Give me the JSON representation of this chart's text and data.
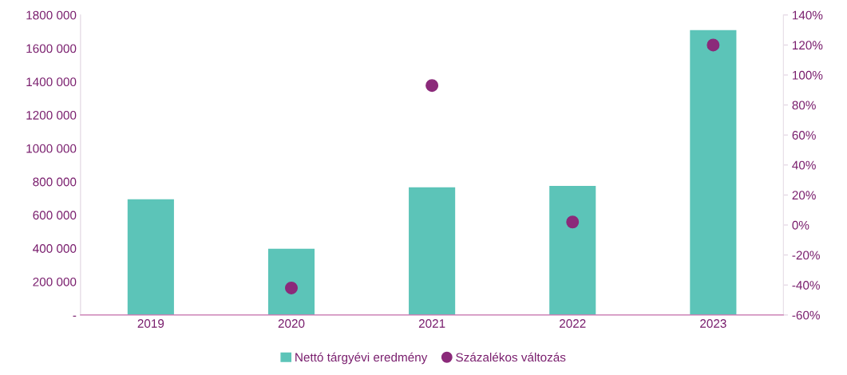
{
  "chart_data": {
    "type": "bar",
    "categories": [
      "2019",
      "2020",
      "2021",
      "2022",
      "2023"
    ],
    "series": [
      {
        "name": "Nettó tárgyévi eredmény",
        "color": "#5cc4b8",
        "values": [
          694000,
          397000,
          766000,
          775000,
          1709000
        ]
      },
      {
        "name": "Százalékos változás",
        "type": "scatter",
        "axis": "y2",
        "color": "#8b2a7a",
        "marker": "circle",
        "values": [
          null,
          -42,
          93,
          2,
          120
        ]
      }
    ],
    "ylim": [
      0,
      1800000
    ],
    "yticks": [
      {
        "value": 0,
        "label": "-"
      },
      {
        "value": 200000,
        "label": "200 000"
      },
      {
        "value": 400000,
        "label": "400 000"
      },
      {
        "value": 600000,
        "label": "600 000"
      },
      {
        "value": 800000,
        "label": "800 000"
      },
      {
        "value": 1000000,
        "label": "1000 000"
      },
      {
        "value": 1200000,
        "label": "1200 000"
      },
      {
        "value": 1400000,
        "label": "1400 000"
      },
      {
        "value": 1600000,
        "label": "1600 000"
      },
      {
        "value": 1800000,
        "label": "1800 000"
      }
    ],
    "y2lim": [
      -60,
      140
    ],
    "y2ticks": [
      {
        "value": -60,
        "label": "-60%"
      },
      {
        "value": -40,
        "label": "-40%"
      },
      {
        "value": -20,
        "label": "-20%"
      },
      {
        "value": 0,
        "label": "0%"
      },
      {
        "value": 20,
        "label": "20%"
      },
      {
        "value": 40,
        "label": "40%"
      },
      {
        "value": 60,
        "label": "60%"
      },
      {
        "value": 80,
        "label": "80%"
      },
      {
        "value": 100,
        "label": "100%"
      },
      {
        "value": 120,
        "label": "120%"
      },
      {
        "value": 140,
        "label": "140%"
      }
    ],
    "grid": false,
    "legend": "bottom"
  }
}
